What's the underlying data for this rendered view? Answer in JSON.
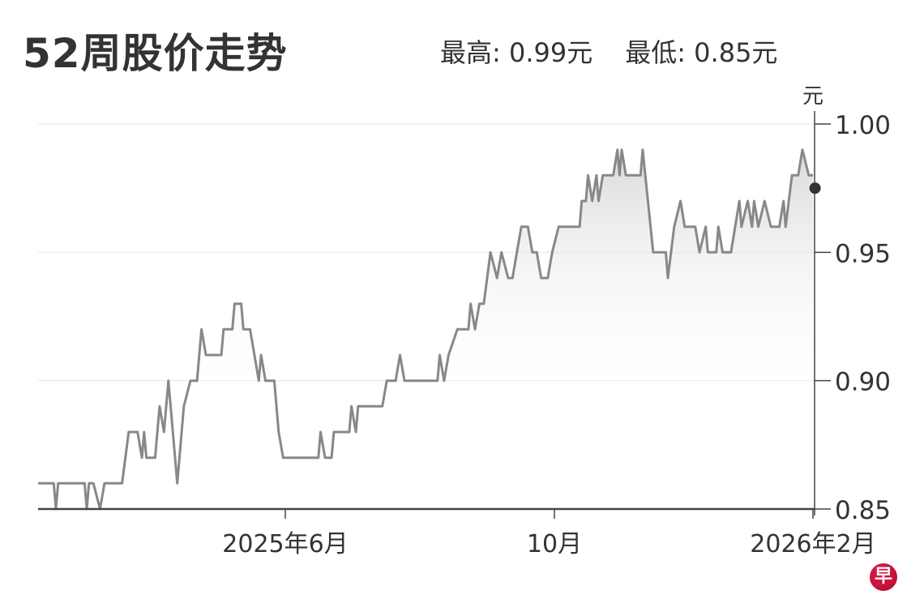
{
  "title": "52周股价走势",
  "stats": {
    "high": "最高: 0.99元",
    "low": "最低: 0.85元"
  },
  "logo_text": "早",
  "colors": {
    "line": "#888888",
    "axis": "#444444",
    "grid": "#eeeeee",
    "dot": "#333333",
    "logo": "#c8103a"
  },
  "chart_data": {
    "type": "line",
    "title": "52周股价走势",
    "ylabel": "元",
    "ylim": [
      0.85,
      1.0
    ],
    "yticks": [
      {
        "value": 1.0,
        "label": "1.00"
      },
      {
        "value": 0.95,
        "label": "0.95"
      },
      {
        "value": 0.9,
        "label": "0.90"
      },
      {
        "value": 0.85,
        "label": "0.85"
      }
    ],
    "xticks": [
      {
        "date": "2025-06-01",
        "label": "2025年6月"
      },
      {
        "date": "2025-10-01",
        "label": "10月"
      },
      {
        "date": "2026-02-01",
        "label": "2026年2月"
      }
    ],
    "grid": true,
    "y_axis_side": "right",
    "last_point": {
      "date": "2026-02-02",
      "value": 0.975
    },
    "points": [
      [
        "2025-02-09",
        0.86
      ],
      [
        "2025-02-16",
        0.86
      ],
      [
        "2025-02-17",
        0.85
      ],
      [
        "2025-02-18",
        0.86
      ],
      [
        "2025-03-02",
        0.86
      ],
      [
        "2025-03-03",
        0.85
      ],
      [
        "2025-03-04",
        0.86
      ],
      [
        "2025-03-06",
        0.86
      ],
      [
        "2025-03-09",
        0.85
      ],
      [
        "2025-03-11",
        0.86
      ],
      [
        "2025-03-19",
        0.86
      ],
      [
        "2025-03-22",
        0.88
      ],
      [
        "2025-03-26",
        0.88
      ],
      [
        "2025-03-28",
        0.87
      ],
      [
        "2025-03-29",
        0.88
      ],
      [
        "2025-03-30",
        0.87
      ],
      [
        "2025-04-03",
        0.87
      ],
      [
        "2025-04-05",
        0.89
      ],
      [
        "2025-04-07",
        0.88
      ],
      [
        "2025-04-09",
        0.9
      ],
      [
        "2025-04-13",
        0.86
      ],
      [
        "2025-04-14",
        0.87
      ],
      [
        "2025-04-16",
        0.89
      ],
      [
        "2025-04-19",
        0.9
      ],
      [
        "2025-04-22",
        0.9
      ],
      [
        "2025-04-24",
        0.92
      ],
      [
        "2025-04-26",
        0.91
      ],
      [
        "2025-05-03",
        0.91
      ],
      [
        "2025-05-04",
        0.92
      ],
      [
        "2025-05-08",
        0.92
      ],
      [
        "2025-05-09",
        0.93
      ],
      [
        "2025-05-12",
        0.93
      ],
      [
        "2025-05-13",
        0.92
      ],
      [
        "2025-05-16",
        0.92
      ],
      [
        "2025-05-18",
        0.91
      ],
      [
        "2025-05-20",
        0.9
      ],
      [
        "2025-05-21",
        0.91
      ],
      [
        "2025-05-23",
        0.9
      ],
      [
        "2025-05-27",
        0.9
      ],
      [
        "2025-05-29",
        0.88
      ],
      [
        "2025-05-31",
        0.87
      ],
      [
        "2025-06-16",
        0.87
      ],
      [
        "2025-06-17",
        0.88
      ],
      [
        "2025-06-19",
        0.87
      ],
      [
        "2025-06-22",
        0.87
      ],
      [
        "2025-06-23",
        0.88
      ],
      [
        "2025-06-30",
        0.88
      ],
      [
        "2025-07-01",
        0.89
      ],
      [
        "2025-07-03",
        0.88
      ],
      [
        "2025-07-04",
        0.89
      ],
      [
        "2025-07-15",
        0.89
      ],
      [
        "2025-07-17",
        0.9
      ],
      [
        "2025-07-21",
        0.9
      ],
      [
        "2025-07-23",
        0.91
      ],
      [
        "2025-07-25",
        0.9
      ],
      [
        "2025-08-09",
        0.9
      ],
      [
        "2025-08-10",
        0.91
      ],
      [
        "2025-08-12",
        0.9
      ],
      [
        "2025-08-14",
        0.91
      ],
      [
        "2025-08-18",
        0.92
      ],
      [
        "2025-08-23",
        0.92
      ],
      [
        "2025-08-24",
        0.93
      ],
      [
        "2025-08-26",
        0.92
      ],
      [
        "2025-08-28",
        0.93
      ],
      [
        "2025-08-30",
        0.93
      ],
      [
        "2025-09-02",
        0.95
      ],
      [
        "2025-09-05",
        0.94
      ],
      [
        "2025-09-07",
        0.95
      ],
      [
        "2025-09-10",
        0.94
      ],
      [
        "2025-09-12",
        0.94
      ],
      [
        "2025-09-14",
        0.95
      ],
      [
        "2025-09-16",
        0.96
      ],
      [
        "2025-09-19",
        0.96
      ],
      [
        "2025-09-21",
        0.95
      ],
      [
        "2025-09-23",
        0.95
      ],
      [
        "2025-09-25",
        0.94
      ],
      [
        "2025-09-28",
        0.94
      ],
      [
        "2025-09-30",
        0.95
      ],
      [
        "2025-10-03",
        0.96
      ],
      [
        "2025-10-13",
        0.96
      ],
      [
        "2025-10-14",
        0.97
      ],
      [
        "2025-10-16",
        0.97
      ],
      [
        "2025-10-17",
        0.98
      ],
      [
        "2025-10-19",
        0.97
      ],
      [
        "2025-10-21",
        0.98
      ],
      [
        "2025-10-22",
        0.97
      ],
      [
        "2025-10-24",
        0.98
      ],
      [
        "2025-10-29",
        0.98
      ],
      [
        "2025-10-31",
        0.99
      ],
      [
        "2025-11-01",
        0.98
      ],
      [
        "2025-11-02",
        0.99
      ],
      [
        "2025-11-04",
        0.98
      ],
      [
        "2025-11-11",
        0.98
      ],
      [
        "2025-11-12",
        0.99
      ],
      [
        "2025-11-17",
        0.95
      ],
      [
        "2025-11-23",
        0.95
      ],
      [
        "2025-11-24",
        0.94
      ],
      [
        "2025-11-27",
        0.96
      ],
      [
        "2025-11-30",
        0.97
      ],
      [
        "2025-12-02",
        0.96
      ],
      [
        "2025-12-07",
        0.96
      ],
      [
        "2025-12-09",
        0.95
      ],
      [
        "2025-12-12",
        0.96
      ],
      [
        "2025-12-13",
        0.95
      ],
      [
        "2025-12-17",
        0.95
      ],
      [
        "2025-12-18",
        0.96
      ],
      [
        "2025-12-20",
        0.95
      ],
      [
        "2025-12-24",
        0.95
      ],
      [
        "2025-12-26",
        0.96
      ],
      [
        "2025-12-28",
        0.97
      ],
      [
        "2025-12-29",
        0.96
      ],
      [
        "2026-01-01",
        0.97
      ],
      [
        "2026-01-03",
        0.96
      ],
      [
        "2026-01-04",
        0.97
      ],
      [
        "2026-01-06",
        0.96
      ],
      [
        "2026-01-09",
        0.97
      ],
      [
        "2026-01-12",
        0.96
      ],
      [
        "2026-01-16",
        0.96
      ],
      [
        "2026-01-18",
        0.97
      ],
      [
        "2026-01-19",
        0.96
      ],
      [
        "2026-01-22",
        0.98
      ],
      [
        "2026-01-25",
        0.98
      ],
      [
        "2026-01-27",
        0.99
      ],
      [
        "2026-01-30",
        0.98
      ],
      [
        "2026-02-01",
        0.98
      ]
    ]
  }
}
